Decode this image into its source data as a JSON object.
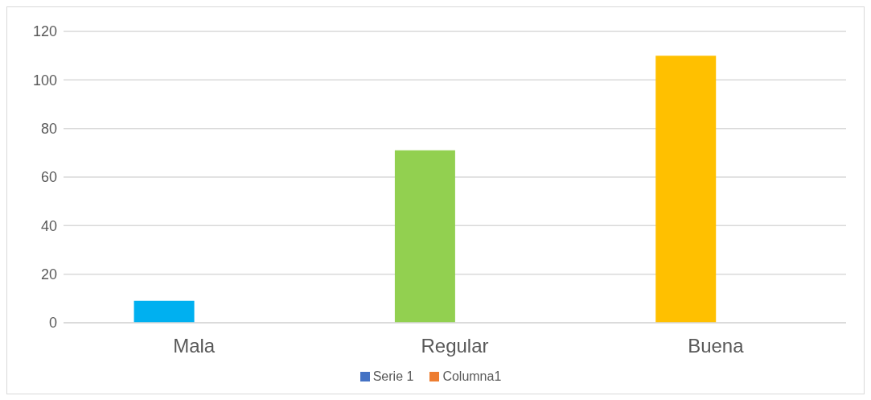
{
  "chart_data": {
    "type": "bar",
    "categories": [
      "Mala",
      "Regular",
      "Buena"
    ],
    "series": [
      {
        "name": "Serie 1",
        "color": "#4472c4",
        "colors": [
          "#00b0f0",
          "#92d050",
          "#ffc000"
        ],
        "values": [
          9,
          71,
          110
        ]
      },
      {
        "name": "Columna1",
        "color": "#ed7d31",
        "values": [
          null,
          null,
          null
        ]
      }
    ],
    "ylim": [
      0,
      120
    ],
    "yticks": [
      0,
      20,
      40,
      60,
      80,
      100,
      120
    ],
    "grid": "y",
    "legend": "bottom"
  }
}
